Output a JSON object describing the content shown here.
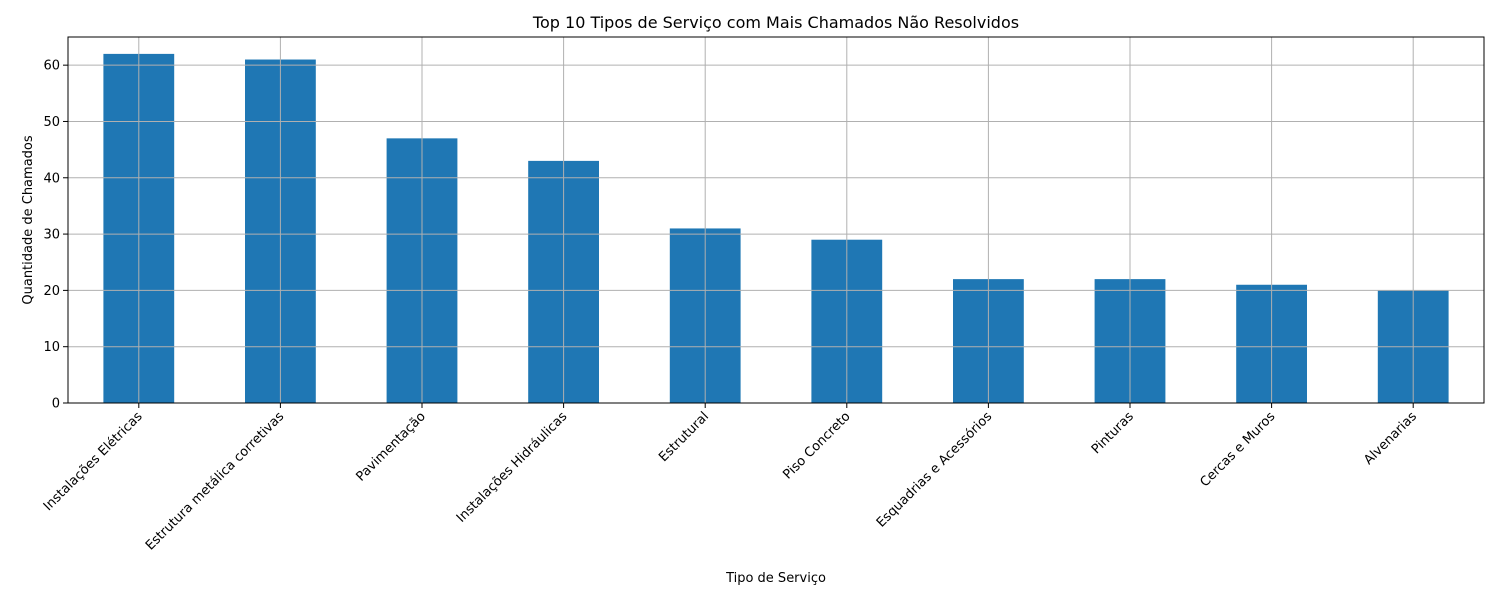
{
  "chart_data": {
    "type": "bar",
    "title": "Top 10 Tipos de Serviço com Mais Chamados Não Resolvidos",
    "xlabel": "Tipo de Serviço",
    "ylabel": "Quantidade de Chamados",
    "categories": [
      "Instalações Elétricas",
      "Estrutura metálica corretivas",
      "Pavimentação",
      "Instalações Hidráulicas",
      "Estrutural",
      "Piso Concreto",
      "Esquadrias e Acessórios",
      "Pinturas",
      "Cercas e Muros",
      "Alvenarias"
    ],
    "values": [
      62,
      61,
      47,
      43,
      31,
      29,
      22,
      22,
      21,
      20
    ],
    "ylim": [
      0,
      65
    ],
    "yticks": [
      0,
      10,
      20,
      30,
      40,
      50,
      60
    ],
    "grid": true,
    "bar_color": "#1f77b4",
    "grid_color": "#b0b0b0"
  }
}
